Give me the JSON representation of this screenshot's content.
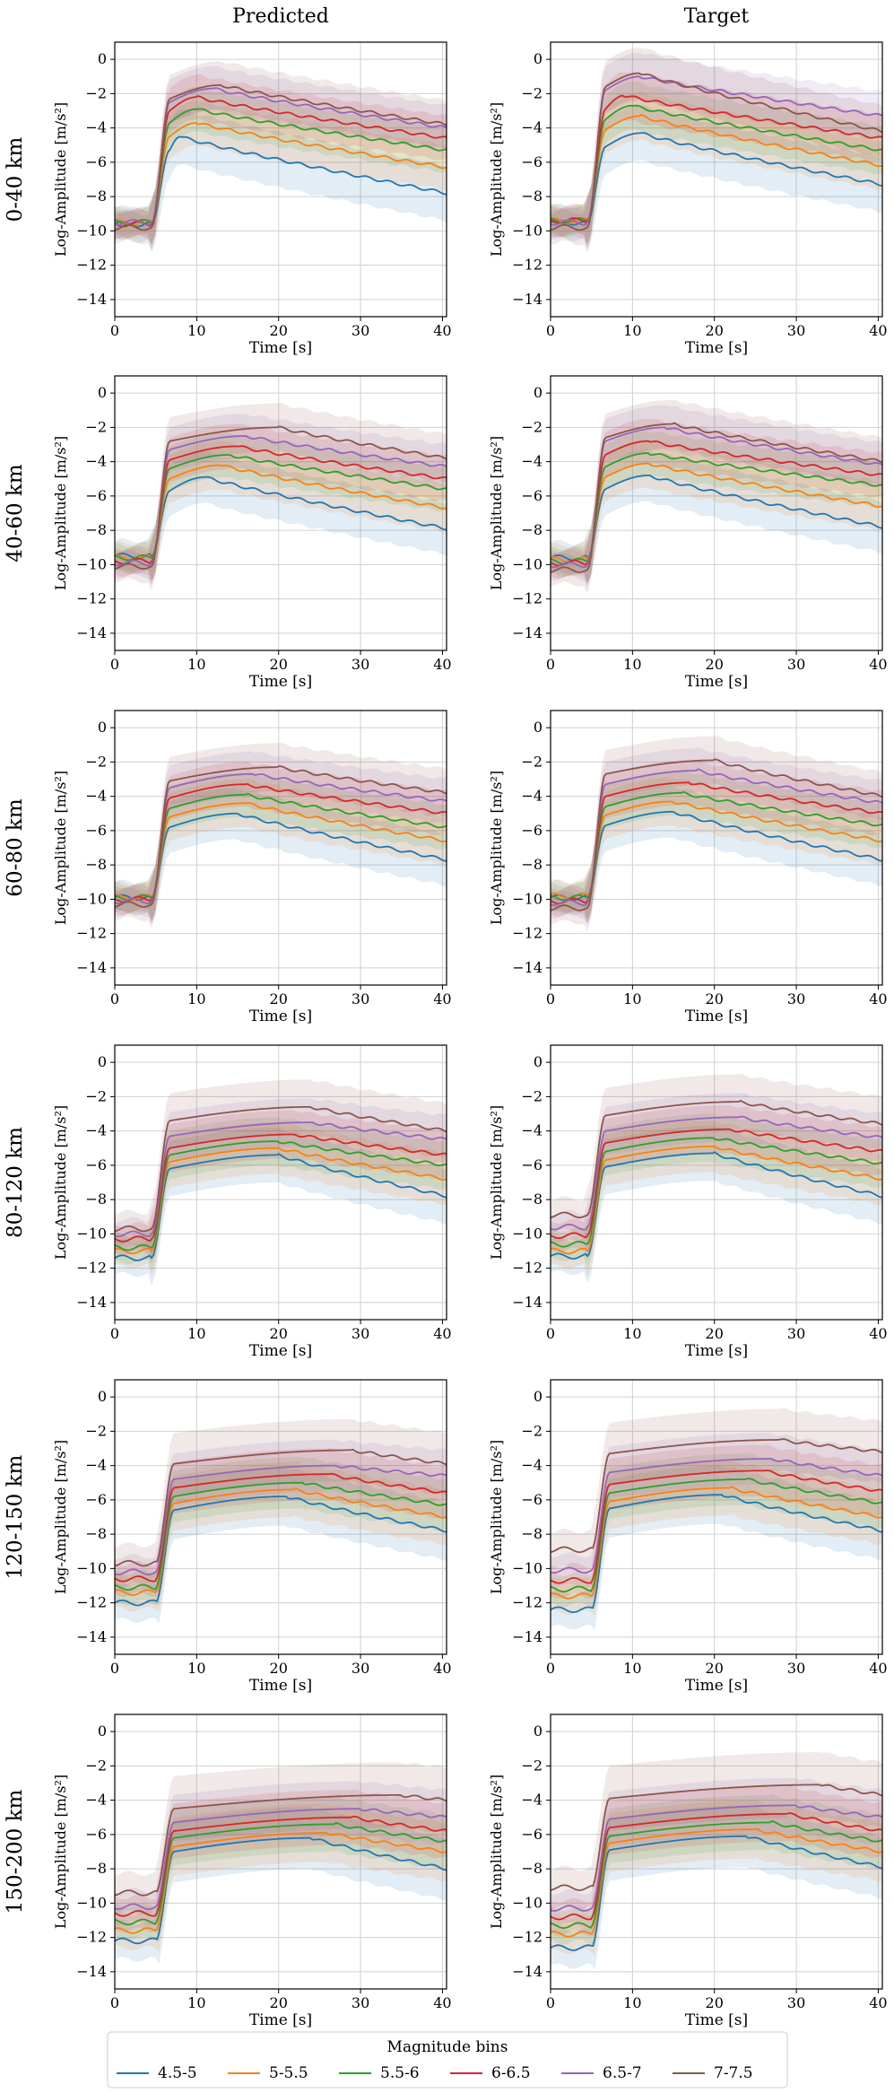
{
  "columns": [
    "Predicted",
    "Target"
  ],
  "rows": [
    "0-40 km",
    "40-60 km",
    "60-80 km",
    "80-120 km",
    "120-150 km",
    "150-200 km"
  ],
  "axes": {
    "xlabel": "Time [s]",
    "ylabel": "Log-Amplitude [m/s²]",
    "xlim": [
      0,
      40.5
    ],
    "ylim": [
      -15,
      1
    ],
    "xticks": [
      0,
      10,
      20,
      30,
      40
    ],
    "yticks": [
      0,
      -2,
      -4,
      -6,
      -8,
      -10,
      -12,
      -14
    ],
    "grid": true
  },
  "legend": {
    "title": "Magnitude bins",
    "placement": "bottom-center",
    "entries": [
      {
        "label": "4.5-5",
        "color": "#1f77b4"
      },
      {
        "label": "5-5.5",
        "color": "#ff7f0e"
      },
      {
        "label": "5.5-6",
        "color": "#2ca02c"
      },
      {
        "label": "6-6.5",
        "color": "#d62728"
      },
      {
        "label": "6.5-7",
        "color": "#9467bd"
      },
      {
        "label": "7-7.5",
        "color": "#8c564b"
      }
    ]
  },
  "chart_data": {
    "type": "line",
    "x_unit": "s",
    "note_band": "shaded band = spread around each mean curve",
    "series_names": [
      "4.5-5",
      "5-5.5",
      "5.5-6",
      "6-6.5",
      "6.5-7",
      "7-7.5"
    ],
    "panels": [
      {
        "row": "0-40 km",
        "column": "Predicted",
        "pre": [
          -9.6,
          -9.5,
          -9.5,
          -9.6,
          -9.5,
          -9.8
        ],
        "onset": 4.5,
        "peak": [
          -4.5,
          -3.7,
          -2.9,
          -2.2,
          -1.7,
          -1.5
        ],
        "peak_t": [
          8,
          10,
          10,
          10,
          12,
          13
        ],
        "end": [
          -7.8,
          -6.3,
          -5.3,
          -4.6,
          -4.0,
          -3.8
        ],
        "band": [
          1.6,
          1.3,
          1.3,
          1.3,
          1.3,
          1.4
        ]
      },
      {
        "row": "0-40 km",
        "column": "Target",
        "pre": [
          -9.5,
          -9.4,
          -9.4,
          -9.4,
          -9.5,
          -9.8
        ],
        "onset": 4.5,
        "peak": [
          -4.3,
          -3.3,
          -2.7,
          -2.1,
          -1.0,
          -0.8
        ],
        "peak_t": [
          11,
          11,
          10,
          9,
          11,
          11
        ],
        "end": [
          -7.3,
          -6.2,
          -5.3,
          -4.6,
          -3.3,
          -4.2
        ],
        "band": [
          1.6,
          1.4,
          1.4,
          1.4,
          1.4,
          1.5
        ]
      },
      {
        "row": "40-60 km",
        "column": "Predicted",
        "pre": [
          -9.5,
          -9.6,
          -9.6,
          -9.8,
          -9.9,
          -10.1
        ],
        "onset": 4.5,
        "peak": [
          -4.9,
          -4.2,
          -3.6,
          -3.1,
          -2.5,
          -2.0
        ],
        "peak_t": [
          11,
          13,
          14,
          15,
          16,
          20
        ],
        "end": [
          -7.9,
          -6.7,
          -5.6,
          -5.0,
          -4.3,
          -3.8
        ],
        "band": [
          1.5,
          1.4,
          1.3,
          1.3,
          1.3,
          1.4
        ]
      },
      {
        "row": "40-60 km",
        "column": "Target",
        "pre": [
          -9.6,
          -9.7,
          -9.8,
          -9.9,
          -10.0,
          -10.3
        ],
        "onset": 4.5,
        "peak": [
          -4.8,
          -4.1,
          -3.5,
          -2.8,
          -2.0,
          -1.8
        ],
        "peak_t": [
          12,
          12,
          12,
          12,
          14,
          15
        ],
        "end": [
          -7.8,
          -6.6,
          -5.4,
          -4.8,
          -4.2,
          -4.0
        ],
        "band": [
          1.5,
          1.4,
          1.3,
          1.3,
          1.3,
          1.4
        ]
      },
      {
        "row": "60-80 km",
        "column": "Predicted",
        "pre": [
          -9.9,
          -9.9,
          -9.9,
          -10.0,
          -10.1,
          -10.3
        ],
        "onset": 4.5,
        "peak": [
          -5.0,
          -4.4,
          -3.9,
          -3.3,
          -2.7,
          -2.3
        ],
        "peak_t": [
          15,
          16,
          16,
          16,
          17,
          20
        ],
        "end": [
          -7.7,
          -6.6,
          -5.8,
          -5.0,
          -4.3,
          -3.8
        ],
        "band": [
          1.5,
          1.4,
          1.3,
          1.3,
          1.3,
          1.4
        ]
      },
      {
        "row": "60-80 km",
        "column": "Target",
        "pre": [
          -9.9,
          -9.8,
          -9.9,
          -10.1,
          -10.2,
          -10.5
        ],
        "onset": 4.5,
        "peak": [
          -4.9,
          -4.3,
          -3.8,
          -3.2,
          -2.5,
          -1.9
        ],
        "peak_t": [
          15,
          15,
          16,
          17,
          18,
          20
        ],
        "end": [
          -7.7,
          -6.6,
          -5.7,
          -5.0,
          -4.4,
          -4.0
        ],
        "band": [
          1.5,
          1.4,
          1.3,
          1.3,
          1.3,
          1.4
        ]
      },
      {
        "row": "80-120 km",
        "column": "Predicted",
        "pre": [
          -11.4,
          -11.0,
          -10.8,
          -10.3,
          -10.0,
          -9.7
        ],
        "onset": 4.5,
        "peak": [
          -5.4,
          -5.0,
          -4.6,
          -4.2,
          -3.5,
          -2.6
        ],
        "peak_t": [
          20,
          20,
          20,
          22,
          24,
          24
        ],
        "end": [
          -7.8,
          -6.8,
          -6.0,
          -5.4,
          -4.5,
          -4.0
        ],
        "band": [
          1.6,
          1.5,
          1.4,
          1.4,
          1.4,
          1.6
        ]
      },
      {
        "row": "80-120 km",
        "column": "Target",
        "pre": [
          -11.3,
          -11.0,
          -10.6,
          -10.1,
          -9.6,
          -8.9
        ],
        "onset": 4.5,
        "peak": [
          -5.3,
          -4.9,
          -4.4,
          -3.9,
          -3.2,
          -2.3
        ],
        "peak_t": [
          20,
          20,
          20,
          22,
          23,
          23
        ],
        "end": [
          -7.8,
          -6.8,
          -5.9,
          -5.2,
          -4.4,
          -3.6
        ],
        "band": [
          1.6,
          1.5,
          1.4,
          1.4,
          1.4,
          1.6
        ]
      },
      {
        "row": "120-150 km",
        "column": "Predicted",
        "pre": [
          -12.0,
          -11.4,
          -11.1,
          -10.6,
          -10.2,
          -9.7
        ],
        "onset": 5.0,
        "peak": [
          -5.8,
          -5.4,
          -5.0,
          -4.5,
          -4.0,
          -3.1
        ],
        "peak_t": [
          21,
          22,
          23,
          26,
          27,
          29
        ],
        "end": [
          -7.8,
          -7.0,
          -6.3,
          -5.6,
          -4.6,
          -3.9
        ],
        "band": [
          1.7,
          1.6,
          1.5,
          1.5,
          1.5,
          1.8
        ]
      },
      {
        "row": "120-150 km",
        "column": "Target",
        "pre": [
          -12.4,
          -11.6,
          -11.2,
          -10.7,
          -10.1,
          -8.9
        ],
        "onset": 5.0,
        "peak": [
          -5.7,
          -5.3,
          -4.8,
          -4.3,
          -3.6,
          -2.5
        ],
        "peak_t": [
          21,
          22,
          24,
          26,
          27,
          28
        ],
        "end": [
          -7.8,
          -7.0,
          -6.2,
          -5.5,
          -4.6,
          -3.2
        ],
        "band": [
          1.7,
          1.6,
          1.5,
          1.5,
          1.5,
          1.8
        ]
      },
      {
        "row": "150-200 km",
        "column": "Predicted",
        "pre": [
          -12.2,
          -11.6,
          -11.1,
          -10.6,
          -10.2,
          -9.4
        ],
        "onset": 5.0,
        "peak": [
          -6.2,
          -5.9,
          -5.4,
          -5.0,
          -4.5,
          -3.7
        ],
        "peak_t": [
          24,
          26,
          27,
          29,
          30,
          35
        ],
        "end": [
          -8.0,
          -7.0,
          -6.4,
          -5.8,
          -5.0,
          -4.0
        ],
        "band": [
          1.8,
          1.7,
          1.6,
          1.6,
          1.6,
          1.9
        ]
      },
      {
        "row": "150-200 km",
        "column": "Target",
        "pre": [
          -12.6,
          -11.8,
          -11.3,
          -10.8,
          -10.3,
          -9.1
        ],
        "onset": 5.0,
        "peak": [
          -6.1,
          -5.7,
          -5.3,
          -4.8,
          -4.3,
          -3.1
        ],
        "peak_t": [
          24,
          25,
          27,
          29,
          30,
          33
        ],
        "end": [
          -7.9,
          -7.0,
          -6.4,
          -5.8,
          -5.0,
          -3.7
        ],
        "band": [
          1.8,
          1.7,
          1.6,
          1.6,
          1.6,
          1.9
        ]
      }
    ]
  }
}
